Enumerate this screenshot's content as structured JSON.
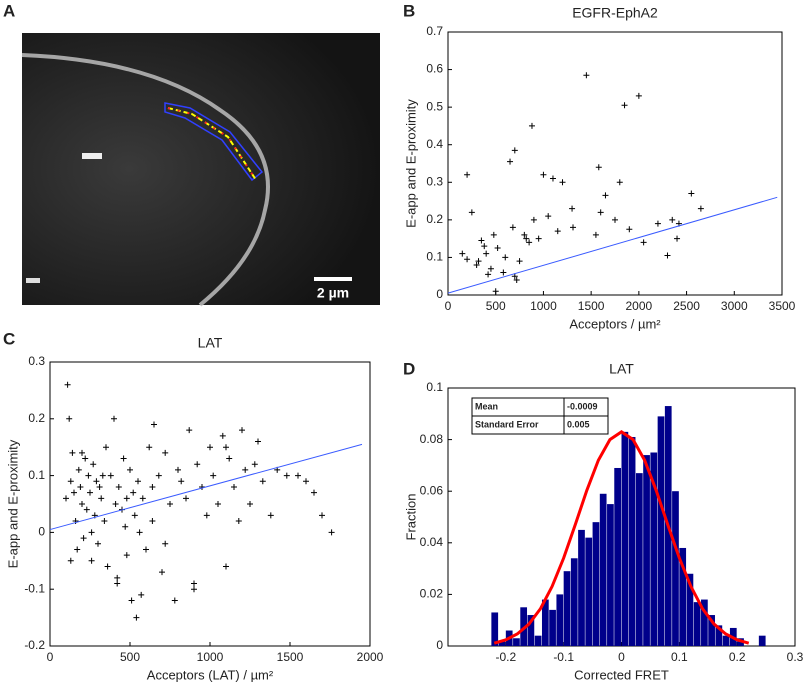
{
  "chart_data": [
    {
      "type": "image",
      "panel_label": "A",
      "scale_bar_label": "2 µm"
    },
    {
      "type": "scatter",
      "panel_label": "B",
      "title": "EGFR-EphA2",
      "xlabel": "Acceptors / µm²",
      "ylabel": "E-app and E-proximity",
      "xlim": [
        0,
        3500
      ],
      "ylim": [
        0,
        0.7
      ],
      "xticks": [
        0,
        500,
        1000,
        1500,
        2000,
        2500,
        3000,
        3500
      ],
      "yticks": [
        0,
        0.1,
        0.2,
        0.3,
        0.4,
        0.5,
        0.6,
        0.7
      ],
      "series": [
        {
          "type": "scatter",
          "color": "#000000",
          "x": [
            150,
            200,
            250,
            200,
            300,
            320,
            350,
            380,
            400,
            420,
            450,
            480,
            500,
            520,
            580,
            600,
            650,
            680,
            700,
            700,
            720,
            750,
            800,
            820,
            850,
            880,
            900,
            950,
            1000,
            1050,
            1100,
            1150,
            1200,
            1300,
            1310,
            1450,
            1550,
            1580,
            1600,
            1650,
            1750,
            1800,
            1850,
            1900,
            2000,
            2050,
            2200,
            2300,
            2350,
            2400,
            2420,
            2550,
            2650
          ],
          "values": [
            0.11,
            0.32,
            0.22,
            0.095,
            0.08,
            0.09,
            0.145,
            0.13,
            0.11,
            0.055,
            0.07,
            0.16,
            0.01,
            0.125,
            0.06,
            0.1,
            0.355,
            0.18,
            0.385,
            0.05,
            0.04,
            0.09,
            0.16,
            0.15,
            0.14,
            0.45,
            0.2,
            0.15,
            0.32,
            0.21,
            0.31,
            0.17,
            0.3,
            0.23,
            0.18,
            0.585,
            0.16,
            0.34,
            0.22,
            0.265,
            0.2,
            0.3,
            0.505,
            0.175,
            0.53,
            0.14,
            0.19,
            0.105,
            0.2,
            0.15,
            0.19,
            0.27,
            0.23
          ]
        },
        {
          "type": "line",
          "color": "#3a5bff",
          "x": [
            0,
            3450
          ],
          "values": [
            0.005,
            0.26
          ]
        }
      ]
    },
    {
      "type": "scatter",
      "panel_label": "C",
      "title": "LAT",
      "xlabel": "Acceptors (LAT) / µm²",
      "ylabel": "E-app and E-proximity",
      "xlim": [
        0,
        2000
      ],
      "ylim": [
        -0.2,
        0.3
      ],
      "xticks": [
        0,
        500,
        1000,
        1500,
        2000
      ],
      "yticks": [
        -0.2,
        -0.1,
        0,
        0.1,
        0.2,
        0.3
      ],
      "series": [
        {
          "type": "scatter",
          "color": "#000000",
          "x": [
            100,
            110,
            120,
            130,
            140,
            150,
            160,
            170,
            180,
            190,
            200,
            210,
            220,
            230,
            240,
            250,
            260,
            270,
            280,
            290,
            300,
            310,
            320,
            340,
            350,
            360,
            380,
            400,
            410,
            420,
            430,
            450,
            460,
            470,
            480,
            500,
            510,
            520,
            530,
            540,
            550,
            560,
            580,
            600,
            620,
            640,
            650,
            680,
            700,
            720,
            750,
            780,
            800,
            820,
            850,
            870,
            900,
            920,
            950,
            980,
            1000,
            1020,
            1050,
            1080,
            1100,
            1120,
            1150,
            1180,
            1200,
            1220,
            1250,
            1280,
            1300,
            1330,
            1380,
            1420,
            1480,
            1550,
            1600,
            1650,
            1700,
            1760,
            130,
            200,
            260,
            330,
            420,
            480,
            570,
            640,
            720,
            900,
            1100
          ],
          "values": [
            0.06,
            0.26,
            0.2,
            0.09,
            0.14,
            0.07,
            0.02,
            -0.03,
            0.11,
            0.08,
            0.05,
            -0.01,
            0.13,
            0.04,
            0.1,
            0.07,
            -0.05,
            0.12,
            0.03,
            0.09,
            -0.02,
            0.08,
            0.06,
            0.02,
            0.15,
            -0.06,
            0.1,
            0.2,
            0.05,
            -0.09,
            0.08,
            0.04,
            0.13,
            0.01,
            -0.04,
            0.11,
            -0.12,
            0.07,
            0.03,
            -0.15,
            0.09,
            0,
            0.06,
            -0.03,
            0.15,
            0.02,
            0.19,
            0.1,
            -0.07,
            0.14,
            0.05,
            -0.12,
            0.11,
            0.09,
            0.06,
            0.18,
            -0.1,
            0.12,
            0.08,
            0.03,
            0.15,
            0.1,
            0.05,
            0.17,
            -0.06,
            0.13,
            0.08,
            0.02,
            0.18,
            0.11,
            0.05,
            0.12,
            0.16,
            0.09,
            0.03,
            0.11,
            0.1,
            0.1,
            0.09,
            0.07,
            0.03,
            0,
            -0.05,
            0.14,
            0,
            0.1,
            -0.08,
            0.06,
            -0.11,
            0.08,
            -0.02,
            -0.09,
            0.15
          ]
        },
        {
          "type": "line",
          "color": "#3a5bff",
          "x": [
            0,
            1950
          ],
          "values": [
            0.005,
            0.155
          ]
        }
      ]
    },
    {
      "type": "histogram",
      "panel_label": "D",
      "title": "LAT",
      "xlabel": "Corrected FRET",
      "ylabel": "Fraction",
      "xlim": [
        -0.3,
        0.3
      ],
      "ylim": [
        0,
        0.1
      ],
      "xticks": [
        -0.2,
        -0.1,
        0,
        0.1,
        0.2,
        0.3
      ],
      "yticks": [
        0,
        0.02,
        0.04,
        0.06,
        0.08,
        0.1
      ],
      "color": "#00008b",
      "bins": [
        -0.225,
        -0.2125,
        -0.2,
        -0.1875,
        -0.175,
        -0.1625,
        -0.15,
        -0.1375,
        -0.125,
        -0.1125,
        -0.1,
        -0.0875,
        -0.075,
        -0.0625,
        -0.05,
        -0.0375,
        -0.025,
        -0.0125,
        0,
        0.0125,
        0.025,
        0.0375,
        0.05,
        0.0625,
        0.075,
        0.0875,
        0.1,
        0.1125,
        0.125,
        0.1375,
        0.15,
        0.1625,
        0.175,
        0.1875,
        0.2,
        0.2125,
        0.225,
        0.2375,
        0.25
      ],
      "values": [
        0.013,
        0.002,
        0.006,
        0.003,
        0.015,
        0.012,
        0.004,
        0.018,
        0.014,
        0.02,
        0.029,
        0.034,
        0.045,
        0.042,
        0.048,
        0.059,
        0.055,
        0.069,
        0.083,
        0.081,
        0.067,
        0.074,
        0.075,
        0.089,
        0.093,
        0.06,
        0.038,
        0.028,
        0.017,
        0.018,
        0.012,
        0.008,
        0.004,
        0.007,
        0.003,
        0,
        0,
        0.004
      ],
      "series": [
        {
          "type": "line",
          "color": "#ff0000",
          "x": [
            -0.22,
            -0.2,
            -0.18,
            -0.16,
            -0.14,
            -0.12,
            -0.1,
            -0.08,
            -0.06,
            -0.04,
            -0.02,
            0,
            0.02,
            0.04,
            0.06,
            0.08,
            0.1,
            0.12,
            0.14,
            0.16,
            0.18,
            0.2,
            0.22
          ],
          "values": [
            0.0011,
            0.0024,
            0.0047,
            0.0085,
            0.0145,
            0.0231,
            0.0341,
            0.047,
            0.0603,
            0.072,
            0.08,
            0.083,
            0.08,
            0.072,
            0.0603,
            0.047,
            0.0341,
            0.0231,
            0.0145,
            0.0085,
            0.0047,
            0.0024,
            0.0011
          ]
        }
      ],
      "table": [
        [
          "Mean",
          -0.0009
        ],
        [
          "Standard Error",
          0.005
        ]
      ]
    }
  ]
}
